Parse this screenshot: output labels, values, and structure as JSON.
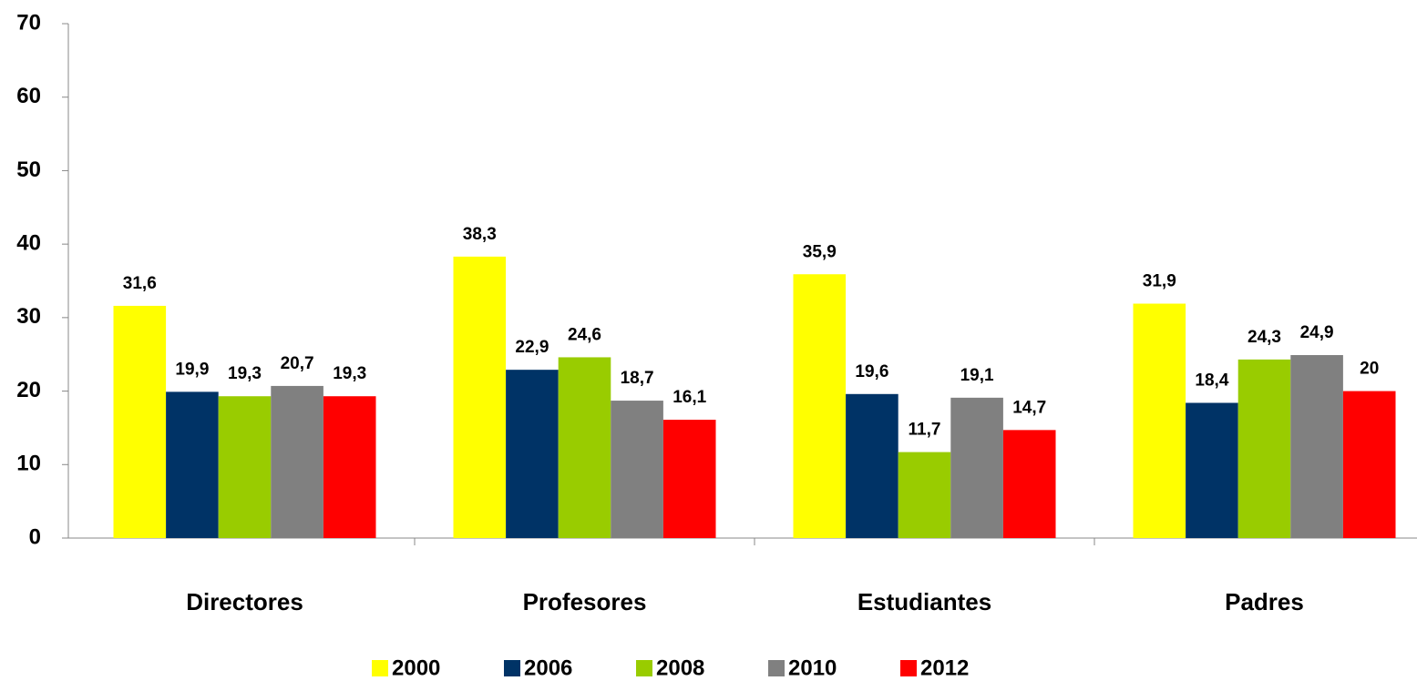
{
  "chart_data": {
    "type": "bar",
    "categories": [
      "Directores",
      "Profesores",
      "Estudiantes",
      "Padres"
    ],
    "series": [
      {
        "name": "2000",
        "color": "#ffff00",
        "values": [
          31.6,
          38.3,
          35.9,
          31.9
        ],
        "value_labels": [
          "31,6",
          "38,3",
          "35,9",
          "31,9"
        ]
      },
      {
        "name": "2006",
        "color": "#003366",
        "values": [
          19.9,
          22.9,
          19.6,
          18.4
        ],
        "value_labels": [
          "19,9",
          "22,9",
          "19,6",
          "18,4"
        ]
      },
      {
        "name": "2008",
        "color": "#99cc00",
        "values": [
          19.3,
          24.6,
          11.7,
          24.3
        ],
        "value_labels": [
          "19,3",
          "24,6",
          "11,7",
          "24,3"
        ]
      },
      {
        "name": "2010",
        "color": "#808080",
        "values": [
          20.7,
          18.7,
          19.1,
          24.9
        ],
        "value_labels": [
          "20,7",
          "18,7",
          "19,1",
          "24,9"
        ]
      },
      {
        "name": "2012",
        "color": "#ff0000",
        "values": [
          19.3,
          16.1,
          14.7,
          20
        ],
        "value_labels": [
          "19,3",
          "16,1",
          "14,7",
          "20"
        ]
      }
    ],
    "ylim": [
      0,
      70
    ],
    "yticks": [
      0,
      10,
      20,
      30,
      40,
      50,
      60,
      70
    ],
    "legend": "bottom"
  }
}
